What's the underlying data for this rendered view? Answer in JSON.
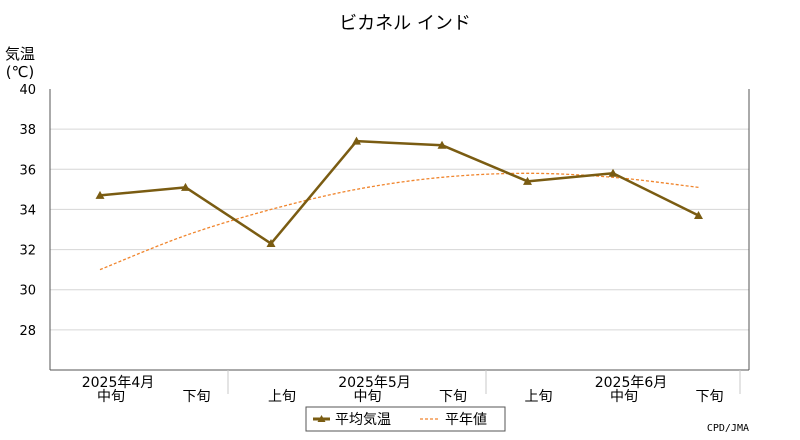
{
  "chart_data": {
    "type": "line",
    "title": "ビカネル インド",
    "ylabel_line1": "気温",
    "ylabel_line2": "(℃)",
    "ylim": [
      26,
      40
    ],
    "yticks": [
      28,
      30,
      32,
      34,
      36,
      38,
      40
    ],
    "grid": true,
    "categories": [
      "中旬",
      "下旬",
      "上旬",
      "中旬",
      "下旬",
      "上旬",
      "中旬",
      "下旬"
    ],
    "month_labels": [
      "2025年4月",
      "2025年5月",
      "2025年6月"
    ],
    "series": [
      {
        "name": "平均気温",
        "style": "solid",
        "marker": "triangle",
        "color": "#7a5c12",
        "values": [
          34.7,
          35.1,
          32.3,
          37.4,
          37.2,
          35.4,
          35.8,
          33.7
        ]
      },
      {
        "name": "平年値",
        "style": "dashed",
        "color": "#f0852d",
        "values": [
          31.0,
          32.7,
          34.0,
          35.0,
          35.6,
          35.8,
          35.6,
          35.1
        ]
      }
    ],
    "legend_placement": "bottom-center",
    "credit": "CPD/JMA"
  }
}
